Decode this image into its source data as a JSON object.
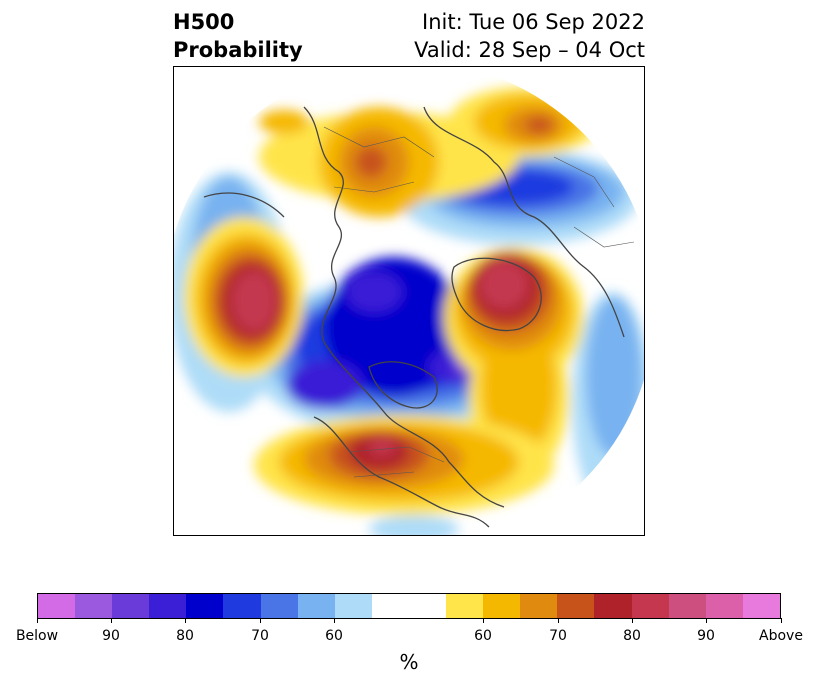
{
  "title": {
    "left_line1": "H500",
    "left_line2": "Probability",
    "right_line1": "Init: Tue 06 Sep 2022",
    "right_line2": "Valid: 28 Sep – 04 Oct"
  },
  "colorbar": {
    "unit": "%",
    "colors": [
      "#d36be6",
      "#9b59e0",
      "#6a3bd8",
      "#3b1fd6",
      "#0000cc",
      "#1f3be0",
      "#4a75e6",
      "#78b2f0",
      "#aedcf8",
      "#ffffff",
      "#ffffff",
      "#ffe44a",
      "#f5b800",
      "#e08b10",
      "#c8531a",
      "#b0222a",
      "#c4374f",
      "#cc4f80",
      "#dc5faa",
      "#e87add"
    ],
    "labels": [
      "Below",
      "90",
      "80",
      "70",
      "60",
      "60",
      "70",
      "80",
      "90",
      "Above"
    ]
  },
  "map": {
    "projection": "north-polar-stereographic",
    "variable": "500 hPa height anomaly probability"
  }
}
